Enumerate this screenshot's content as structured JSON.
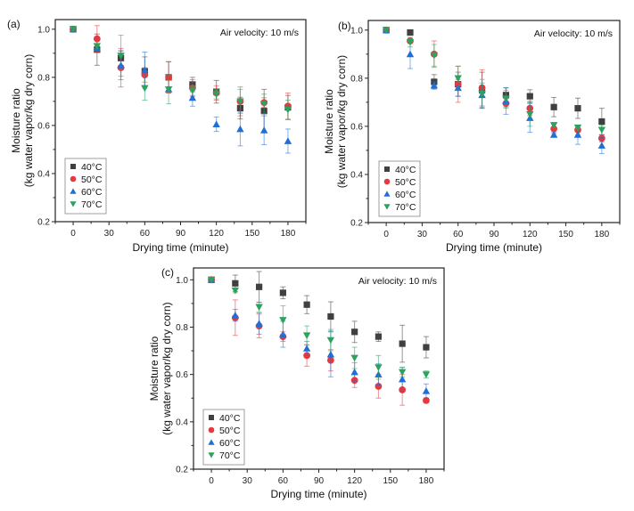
{
  "chart_data": [
    {
      "type": "scatter",
      "panel_label": "(a)",
      "annotation": "Air velocity: 10 m/s",
      "title": "",
      "xlabel": "Drying time (minute)",
      "ylabel_line1": "Moisture ratio",
      "ylabel_line2": "(kg water vapor/kg dry corn)",
      "xlim": [
        -15,
        195
      ],
      "ylim": [
        0.2,
        1.04
      ],
      "xticks": [
        "0",
        "30",
        "60",
        "90",
        "120",
        "150",
        "180"
      ],
      "yticks": [
        "0.2",
        "0.4",
        "0.6",
        "0.8",
        "1.0"
      ],
      "legend_position": "bottom-left",
      "x": [
        0,
        20,
        40,
        60,
        80,
        100,
        120,
        140,
        160,
        180
      ],
      "series": [
        {
          "name": "40°C",
          "marker": "square",
          "color": "#404040",
          "values": [
            1.0,
            0.915,
            0.88,
            0.825,
            0.8,
            0.77,
            0.74,
            0.672,
            0.66,
            0.675
          ],
          "errors": [
            0.005,
            0.065,
            0.03,
            0.06,
            0.065,
            0.03,
            0.047,
            0.045,
            0.09,
            0.05
          ]
        },
        {
          "name": "50°C",
          "marker": "circle",
          "color": "#e8383d",
          "values": [
            1.0,
            0.96,
            0.84,
            0.81,
            0.8,
            0.755,
            0.735,
            0.7,
            0.695,
            0.68
          ],
          "errors": [
            0.005,
            0.055,
            0.08,
            0.03,
            0.065,
            0.035,
            0.03,
            0.06,
            0.02,
            0.055
          ]
        },
        {
          "name": "60°C",
          "marker": "triangle-up",
          "color": "#1f6fd6",
          "values": [
            1.0,
            0.92,
            0.85,
            0.83,
            0.75,
            0.715,
            0.605,
            0.585,
            0.58,
            0.535
          ],
          "errors": [
            0.005,
            0.01,
            0.06,
            0.075,
            0.01,
            0.035,
            0.03,
            0.07,
            0.06,
            0.05
          ]
        },
        {
          "name": "70°C",
          "marker": "triangle-down",
          "color": "#2ca25f",
          "values": [
            1.0,
            0.93,
            0.89,
            0.755,
            0.75,
            0.745,
            0.73,
            0.7,
            0.69,
            0.665
          ],
          "errors": [
            0.005,
            0.01,
            0.085,
            0.05,
            0.06,
            0.02,
            0.02,
            0.05,
            0.04,
            0.04
          ]
        }
      ]
    },
    {
      "type": "scatter",
      "panel_label": "(b)",
      "annotation": "Air velocity: 10 m/s",
      "title": "",
      "xlabel": "Drying time (minute)",
      "ylabel_line1": "Moisture ratio",
      "ylabel_line2": "(kg water vapor/kg dry corn)",
      "xlim": [
        -15,
        195
      ],
      "ylim": [
        0.2,
        1.04
      ],
      "xticks": [
        "0",
        "30",
        "60",
        "90",
        "120",
        "150",
        "180"
      ],
      "yticks": [
        "0.2",
        "0.4",
        "0.6",
        "0.8",
        "1.0"
      ],
      "legend_position": "bottom-left",
      "x": [
        0,
        20,
        40,
        60,
        80,
        100,
        120,
        140,
        160,
        180
      ],
      "series": [
        {
          "name": "40°C",
          "marker": "square",
          "color": "#404040",
          "values": [
            1.0,
            0.99,
            0.785,
            0.775,
            0.75,
            0.73,
            0.725,
            0.68,
            0.675,
            0.62
          ],
          "errors": [
            0.005,
            0.005,
            0.03,
            0.05,
            0.075,
            0.03,
            0.027,
            0.04,
            0.042,
            0.055
          ]
        },
        {
          "name": "50°C",
          "marker": "circle",
          "color": "#e8383d",
          "values": [
            1.0,
            0.955,
            0.9,
            0.775,
            0.76,
            0.695,
            0.675,
            0.59,
            0.585,
            0.55
          ],
          "errors": [
            0.005,
            0.01,
            0.055,
            0.075,
            0.075,
            0.02,
            0.03,
            0.02,
            0.02,
            0.015
          ]
        },
        {
          "name": "60°C",
          "marker": "triangle-up",
          "color": "#1f6fd6",
          "values": [
            1.0,
            0.9,
            0.77,
            0.76,
            0.73,
            0.705,
            0.635,
            0.565,
            0.565,
            0.52
          ],
          "errors": [
            0.005,
            0.06,
            0.015,
            0.035,
            0.05,
            0.055,
            0.06,
            0.01,
            0.04,
            0.033
          ]
        },
        {
          "name": "70°C",
          "marker": "triangle-down",
          "color": "#2ca25f",
          "values": [
            1.0,
            0.95,
            0.895,
            0.8,
            0.735,
            0.715,
            0.65,
            0.605,
            0.595,
            0.585
          ],
          "errors": [
            0.005,
            0.02,
            0.045,
            0.05,
            0.06,
            0.035,
            0.05,
            0.01,
            0.01,
            0.02
          ]
        }
      ]
    },
    {
      "type": "scatter",
      "panel_label": "(c)",
      "annotation": "Air velocity: 10 m/s",
      "title": "",
      "xlabel": "Drying time (minute)",
      "ylabel_line1": "Moisture ratio",
      "ylabel_line2": "(kg water vapor/kg dry corn)",
      "xlim": [
        -15,
        195
      ],
      "ylim": [
        0.2,
        1.05
      ],
      "xticks": [
        "0",
        "30",
        "60",
        "90",
        "120",
        "150",
        "180"
      ],
      "yticks": [
        "0.2",
        "0.4",
        "0.6",
        "0.8",
        "1.0"
      ],
      "legend_position": "bottom-left",
      "x": [
        0,
        20,
        40,
        60,
        80,
        100,
        120,
        140,
        160,
        180
      ],
      "series": [
        {
          "name": "40°C",
          "marker": "square",
          "color": "#404040",
          "values": [
            1.0,
            0.985,
            0.97,
            0.945,
            0.895,
            0.845,
            0.78,
            0.76,
            0.73,
            0.715
          ],
          "errors": [
            0.005,
            0.035,
            0.065,
            0.025,
            0.038,
            0.062,
            0.045,
            0.02,
            0.078,
            0.045
          ]
        },
        {
          "name": "50°C",
          "marker": "circle",
          "color": "#e8383d",
          "values": [
            1.0,
            0.84,
            0.805,
            0.76,
            0.68,
            0.66,
            0.575,
            0.55,
            0.535,
            0.49
          ],
          "errors": [
            0.005,
            0.075,
            0.05,
            0.02,
            0.045,
            0.045,
            0.03,
            0.05,
            0.065,
            0.01
          ]
        },
        {
          "name": "60°C",
          "marker": "triangle-up",
          "color": "#1f6fd6",
          "values": [
            1.0,
            0.85,
            0.815,
            0.77,
            0.71,
            0.685,
            0.61,
            0.6,
            0.58,
            0.53
          ],
          "errors": [
            0.005,
            0.025,
            0.045,
            0.055,
            0.03,
            0.095,
            0.04,
            0.045,
            0.05,
            0.03
          ]
        },
        {
          "name": "70°C",
          "marker": "triangle-down",
          "color": "#2ca25f",
          "values": [
            1.0,
            0.955,
            0.885,
            0.83,
            0.765,
            0.745,
            0.67,
            0.63,
            0.61,
            0.6
          ],
          "errors": [
            0.005,
            0.01,
            0.02,
            0.06,
            0.04,
            0.045,
            0.045,
            0.05,
            0.02,
            0.015
          ]
        }
      ]
    }
  ]
}
